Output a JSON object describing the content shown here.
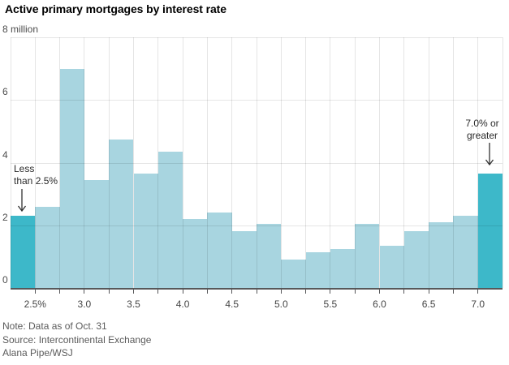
{
  "title": "Active primary mortgages by interest rate",
  "y_axis": {
    "top_label": "8 million",
    "tick_labels": [
      "0",
      "2",
      "4",
      "6"
    ],
    "tick_values": [
      0,
      2,
      4,
      6
    ]
  },
  "x_axis": {
    "labels": [
      "2.5%",
      "3.0",
      "3.5",
      "4.0",
      "4.5",
      "5.0",
      "5.5",
      "6.0",
      "6.5",
      "7.0"
    ],
    "label_values": [
      2.5,
      3.0,
      3.5,
      4.0,
      4.5,
      5.0,
      5.5,
      6.0,
      6.5,
      7.0
    ],
    "minor_tick_step": 0.25
  },
  "annotations": {
    "less": {
      "line1": "Less",
      "line2": "than 2.5%"
    },
    "greater": {
      "line1": "7.0% or",
      "line2": "greater"
    }
  },
  "footer": {
    "note": "Note: Data as of Oct. 31",
    "source": "Source: Intercontinental Exchange",
    "credit": "Alana Pipe/WSJ"
  },
  "colors": {
    "bar_light": "#a8d5e0",
    "bar_dark": "#3db8c9",
    "baseline": "#57585a",
    "gridline": "rgba(0,0,0,0.10)",
    "text_axis": "#4d4d4d",
    "text_annotation": "#2b2b2b",
    "text_footer": "#5a5a5a"
  },
  "chart_data": {
    "type": "bar",
    "title": "Active primary mortgages by interest rate",
    "unit": "million mortgages",
    "bin_width_pct_points": 0.25,
    "categories": [
      "Less than 2.5%",
      "2.50-2.75",
      "2.75-3.00",
      "3.00-3.25",
      "3.25-3.50",
      "3.50-3.75",
      "3.75-4.00",
      "4.00-4.25",
      "4.25-4.50",
      "4.50-4.75",
      "4.75-5.00",
      "5.00-5.25",
      "5.25-5.50",
      "5.50-5.75",
      "5.75-6.00",
      "6.00-6.25",
      "6.25-6.50",
      "6.50-6.75",
      "6.75-7.00",
      "7.0% or greater"
    ],
    "values": [
      2.3,
      2.6,
      7.0,
      3.45,
      4.75,
      3.65,
      4.35,
      2.2,
      2.4,
      1.8,
      2.05,
      0.9,
      1.15,
      1.25,
      2.05,
      1.35,
      1.8,
      2.1,
      2.3,
      3.65
    ],
    "highlighted_indices": [
      0,
      19
    ],
    "highlight_labels": [
      "Less than 2.5%",
      "7.0% or greater"
    ],
    "xlabel": "",
    "ylabel": "",
    "ylim": [
      0,
      8
    ],
    "y_gridlines": [
      2,
      4,
      6,
      8
    ],
    "x_domain": [
      2.25,
      7.25
    ],
    "x_tick_labels": [
      "2.5%",
      "3.0",
      "3.5",
      "4.0",
      "4.5",
      "5.0",
      "5.5",
      "6.0",
      "6.5",
      "7.0"
    ],
    "grid": true,
    "legend": false
  }
}
